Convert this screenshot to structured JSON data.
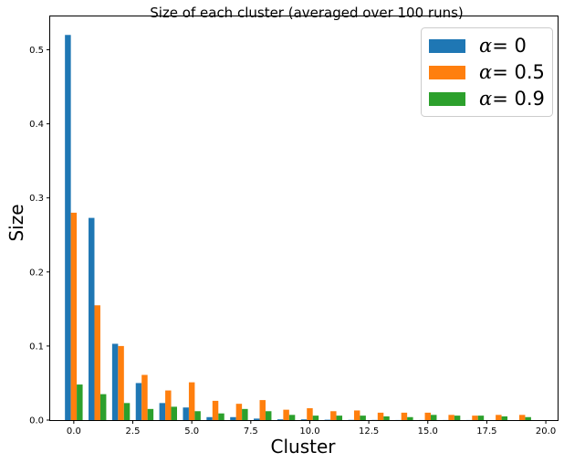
{
  "chart_data": {
    "type": "bar",
    "title": "Size of each cluster (averaged over 100 runs)",
    "xlabel": "Cluster",
    "ylabel": "Size",
    "xlim": [
      -1,
      20.5
    ],
    "ylim": [
      0,
      0.545
    ],
    "xticks": [
      0.0,
      2.5,
      5.0,
      7.5,
      10.0,
      12.5,
      15.0,
      17.5,
      20.0
    ],
    "xtick_labels": [
      "0.0",
      "2.5",
      "5.0",
      "7.5",
      "10.0",
      "12.5",
      "15.0",
      "17.5",
      "20.0"
    ],
    "yticks": [
      0.0,
      0.1,
      0.2,
      0.3,
      0.4,
      0.5
    ],
    "ytick_labels": [
      "0.0",
      "0.1",
      "0.2",
      "0.3",
      "0.4",
      "0.5"
    ],
    "grid": false,
    "legend_position": "top-right",
    "categories": [
      0,
      1,
      2,
      3,
      4,
      5,
      6,
      7,
      8,
      9,
      10,
      11,
      12,
      13,
      14,
      15,
      16,
      17,
      18,
      19
    ],
    "series": [
      {
        "symbol": "α",
        "label_suffix": "= 0",
        "color": "#1f77b4",
        "values": [
          0.52,
          0.273,
          0.103,
          0.05,
          0.023,
          0.017,
          0.004,
          0.004,
          0.002,
          0.001,
          0.001,
          0.0005,
          0.0003,
          0.0002,
          0.0001,
          0.0001,
          0.0001,
          0.0001,
          0.0,
          0.0
        ]
      },
      {
        "symbol": "α",
        "label_suffix": "= 0.5",
        "color": "#ff7f0e",
        "values": [
          0.28,
          0.155,
          0.1,
          0.061,
          0.04,
          0.051,
          0.026,
          0.022,
          0.027,
          0.014,
          0.016,
          0.012,
          0.013,
          0.01,
          0.01,
          0.01,
          0.007,
          0.006,
          0.007,
          0.007
        ]
      },
      {
        "symbol": "α",
        "label_suffix": "= 0.9",
        "color": "#2ca02c",
        "values": [
          0.048,
          0.035,
          0.023,
          0.015,
          0.018,
          0.012,
          0.009,
          0.015,
          0.012,
          0.007,
          0.006,
          0.006,
          0.006,
          0.005,
          0.004,
          0.007,
          0.006,
          0.006,
          0.005,
          0.004
        ]
      }
    ]
  }
}
